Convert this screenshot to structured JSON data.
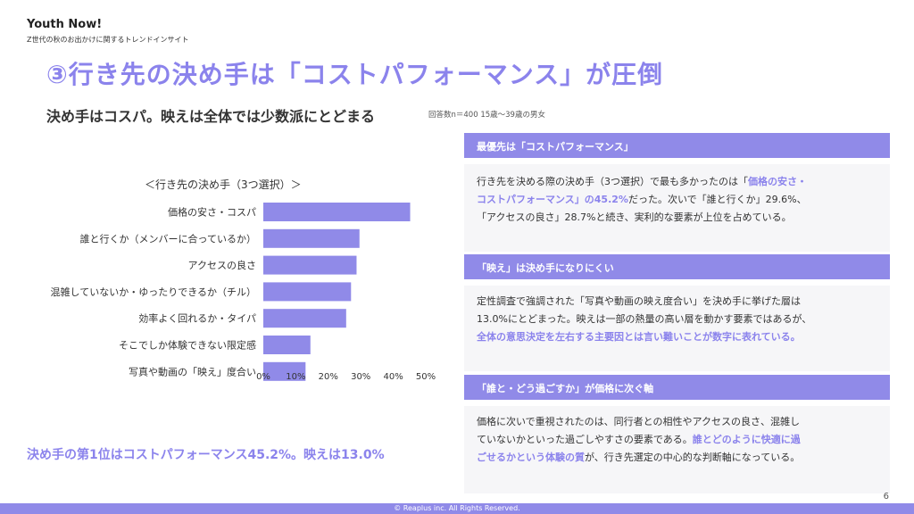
{
  "header": {
    "brand": "Youth Now!",
    "brand_sub": "Z世代の秋のお出かけに関するトレンドインサイト",
    "title": "③行き先の決め手は「コストパフォーマンス」が圧倒",
    "subtitle": "決め手はコスパ。映えは全体では少数派にとどまる",
    "note": "回答数n＝400 15歳～39歳の男女"
  },
  "chart_data": {
    "type": "bar",
    "orientation": "horizontal",
    "title": "＜行き先の決め手（3つ選択）＞",
    "categories": [
      "価格の安さ・コスパ",
      "誰と行くか（メンバーに合っているか）",
      "アクセスの良さ",
      "混雑していないか・ゆったりできるか（チル）",
      "効率よく回れるか・タイパ",
      "そこでしか体験できない限定感",
      "写真や動画の「映え」度合い"
    ],
    "values": [
      45.2,
      29.6,
      28.7,
      27.0,
      25.5,
      14.5,
      13.0
    ],
    "xlim": [
      0,
      50
    ],
    "xticks": [
      "0%",
      "10%",
      "20%",
      "30%",
      "40%",
      "50%"
    ],
    "bar_color": "#908ae8",
    "grid": false
  },
  "summary": "決め手の第1位はコストパフォーマンス45.2%。映えは13.0%",
  "panels": [
    {
      "heading": "最優先は「コストパフォーマンス」",
      "lines": [
        {
          "pre": "行き先を決める際の決め手（3つ選択）で最も多かったのは「",
          "hl": "価格の安さ・",
          "post": ""
        },
        {
          "pre": "",
          "hl": "コストパフォーマンス」の45.2%",
          "post": "だった。次いで「誰と行くか」29.6%、"
        },
        {
          "pre": "「アクセスの良さ」28.7%と続き、実利的な要素が上位を占めている。",
          "hl": "",
          "post": ""
        }
      ]
    },
    {
      "heading": "「映え」は決め手になりにくい",
      "lines": [
        {
          "pre": "定性調査で強調された「写真や動画の映え度合い」を決め手に挙げた層は",
          "hl": "",
          "post": ""
        },
        {
          "pre": "13.0%にとどまった。映えは一部の熱量の高い層を動かす要素ではあるが、",
          "hl": "",
          "post": ""
        },
        {
          "pre": "",
          "hl": "全体の意思決定を左右する主要因とは言い難いことが数字に表れている。",
          "post": ""
        }
      ]
    },
    {
      "heading": "「誰と・どう過ごすか」が価格に次ぐ軸",
      "lines": [
        {
          "pre": "価格に次いで重視されたのは、同行者との相性やアクセスの良さ、混雑し",
          "hl": "",
          "post": ""
        },
        {
          "pre": "ていないかといった過ごしやすさの要素である。",
          "hl": "誰とどのように快適に過",
          "post": ""
        },
        {
          "pre": "",
          "hl": "ごせるかという体験の質",
          "post": "が、行き先選定の中心的な判断軸になっている。"
        }
      ]
    }
  ],
  "page_number": "6",
  "footer": "© Reaplus inc. All Rights Reserved.",
  "colors": {
    "accent": "#8b83ec",
    "panel_bg": "#f6f6f8"
  }
}
